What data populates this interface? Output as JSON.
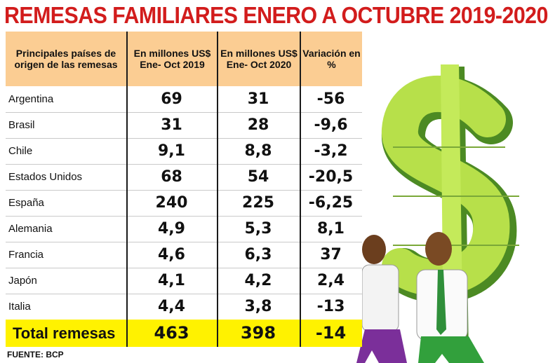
{
  "title": "REMESAS FAMILIARES ENERO A OCTUBRE 2019-2020",
  "source": "FUENTE: BCP",
  "colors": {
    "title": "#d21c1c",
    "header": "#fbcd93",
    "total": "#fff200",
    "dollar": "#b7e04a",
    "dollar_dark": "#4c8a23"
  },
  "chart_data": {
    "type": "table",
    "title": "REMESAS FAMILIARES ENERO A OCTUBRE 2019-2020",
    "columns": [
      "Principales países de origen de las remesas",
      "En millones US$ Ene- Oct 2019",
      "En millones US$ Ene- Oct 2020",
      "Variación en %"
    ],
    "rows": [
      {
        "country": "Argentina",
        "y2019": "69",
        "y2020": "31",
        "var": "-56"
      },
      {
        "country": "Brasil",
        "y2019": "31",
        "y2020": "28",
        "var": "-9,6"
      },
      {
        "country": "Chile",
        "y2019": "9,1",
        "y2020": "8,8",
        "var": "-3,2"
      },
      {
        "country": "Estados Unidos",
        "y2019": "68",
        "y2020": "54",
        "var": "-20,5"
      },
      {
        "country": "España",
        "y2019": "240",
        "y2020": "225",
        "var": "-6,25"
      },
      {
        "country": "Alemania",
        "y2019": "4,9",
        "y2020": "5,3",
        "var": "8,1"
      },
      {
        "country": "Francia",
        "y2019": "4,6",
        "y2020": "6,3",
        "var": "37"
      },
      {
        "country": "Japón",
        "y2019": "4,1",
        "y2020": "4,2",
        "var": "2,4"
      },
      {
        "country": "Italia",
        "y2019": "4,4",
        "y2020": "3,8",
        "var": "-13"
      }
    ],
    "total": {
      "label": "Total remesas",
      "y2019": "463",
      "y2020": "398",
      "var": "-14"
    }
  }
}
